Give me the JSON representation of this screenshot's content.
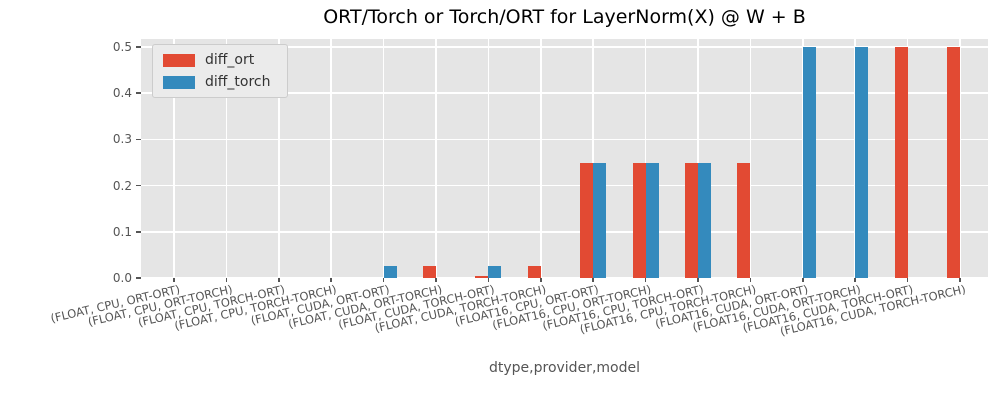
{
  "chart_data": {
    "type": "bar",
    "title": "ORT/Torch or Torch/ORT for LayerNorm(X) @ W + B",
    "xlabel": "dtype,provider,model",
    "ylabel": "",
    "ylim": [
      0,
      0.517
    ],
    "yticks": [
      0,
      0.1,
      0.2,
      0.3,
      0.4,
      0.5
    ],
    "ytick_labels": [
      "0.0",
      "0.1",
      "0.2",
      "0.3",
      "0.4",
      "0.5"
    ],
    "grid": true,
    "legend_position": "upper left",
    "categories": [
      "(FLOAT, CPU, ORT-ORT)",
      "(FLOAT, CPU, ORT-TORCH)",
      "(FLOAT, CPU, TORCH-ORT)",
      "(FLOAT, CPU, TORCH-TORCH)",
      "(FLOAT, CUDA, ORT-ORT)",
      "(FLOAT, CUDA, ORT-TORCH)",
      "(FLOAT, CUDA, TORCH-ORT)",
      "(FLOAT, CUDA, TORCH-TORCH)",
      "(FLOAT16, CPU, ORT-ORT)",
      "(FLOAT16, CPU, ORT-TORCH)",
      "(FLOAT16, CPU, TORCH-ORT)",
      "(FLOAT16, CPU, TORCH-TORCH)",
      "(FLOAT16, CUDA, ORT-ORT)",
      "(FLOAT16, CUDA, ORT-TORCH)",
      "(FLOAT16, CUDA, TORCH-ORT)",
      "(FLOAT16, CUDA, TORCH-TORCH)"
    ],
    "series": [
      {
        "name": "diff_ort",
        "color": "#e24a33",
        "values": [
          0,
          0,
          0,
          0,
          0,
          0.025,
          0.004,
          0.025,
          0.25,
          0.25,
          0.25,
          0.25,
          0,
          0,
          0.5,
          0.5
        ]
      },
      {
        "name": "diff_torch",
        "color": "#348abd",
        "values": [
          0,
          0,
          0,
          0,
          0.025,
          0,
          0.025,
          0,
          0.25,
          0.25,
          0.25,
          0,
          0.5,
          0.5,
          0,
          0
        ]
      }
    ]
  },
  "style": {
    "plot_background": "#e5e5e5",
    "grid_color": "#ffffff",
    "tick_color": "#555555",
    "title_color": "#000000",
    "legend_background": "#ebebeb",
    "legend_border": "#cccccc"
  }
}
